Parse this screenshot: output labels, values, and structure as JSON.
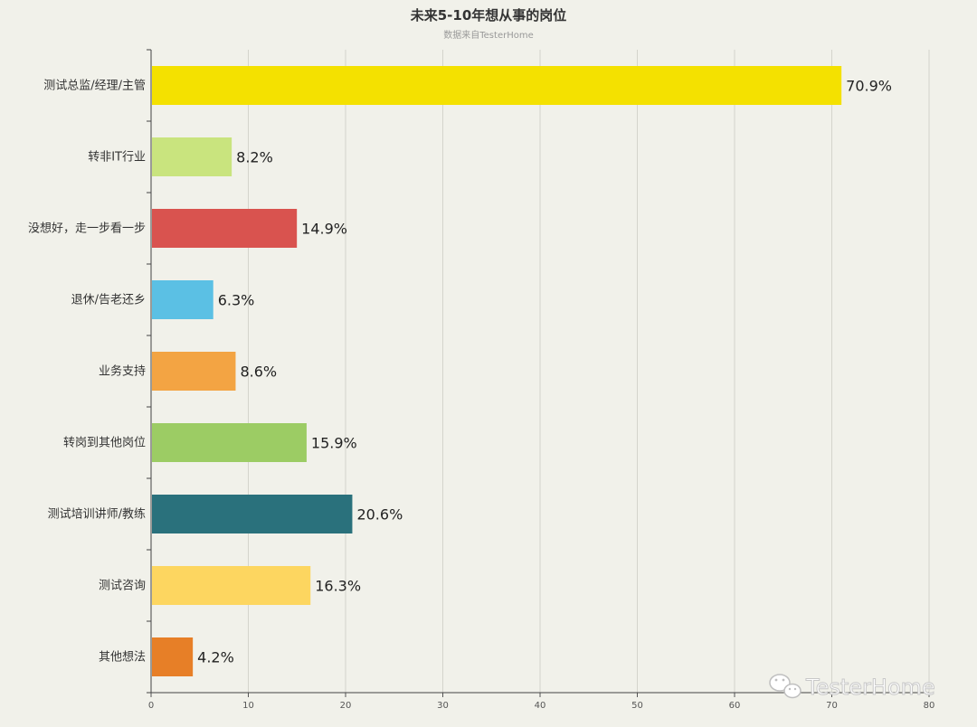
{
  "chart_data": {
    "type": "bar",
    "orientation": "horizontal",
    "title": "未来5-10年想从事的岗位",
    "subtitle": "数据来自TesterHome",
    "categories": [
      "测试总监/经理/主管",
      "转非IT行业",
      "没想好，走一步看一步",
      "退休/告老还乡",
      "业务支持",
      "转岗到其他岗位",
      "测试培训讲师/教练",
      "测试咨询",
      "其他想法"
    ],
    "values": [
      70.9,
      8.2,
      14.9,
      6.3,
      8.6,
      15.9,
      20.6,
      16.3,
      4.2
    ],
    "data_labels": [
      "70.9%",
      "8.2%",
      "14.9%",
      "6.3%",
      "8.6%",
      "15.9%",
      "20.6%",
      "16.3%",
      "4.2%"
    ],
    "colors": [
      "#f4e100",
      "#c9e47e",
      "#d9534f",
      "#5bc0e4",
      "#f3a443",
      "#9ccc64",
      "#2a717c",
      "#fdd660",
      "#e77f27"
    ],
    "xlim": [
      0,
      80
    ],
    "xticks": [
      0,
      10,
      20,
      30,
      40,
      50,
      60,
      70,
      80
    ],
    "xtick_labels": [
      "0",
      "10",
      "20",
      "30",
      "40",
      "50",
      "60",
      "70",
      "80"
    ],
    "grid": true,
    "legend": "none",
    "xlabel": "",
    "ylabel": ""
  },
  "watermark": {
    "text": "TesterHome",
    "icon": "wechat-icon"
  }
}
